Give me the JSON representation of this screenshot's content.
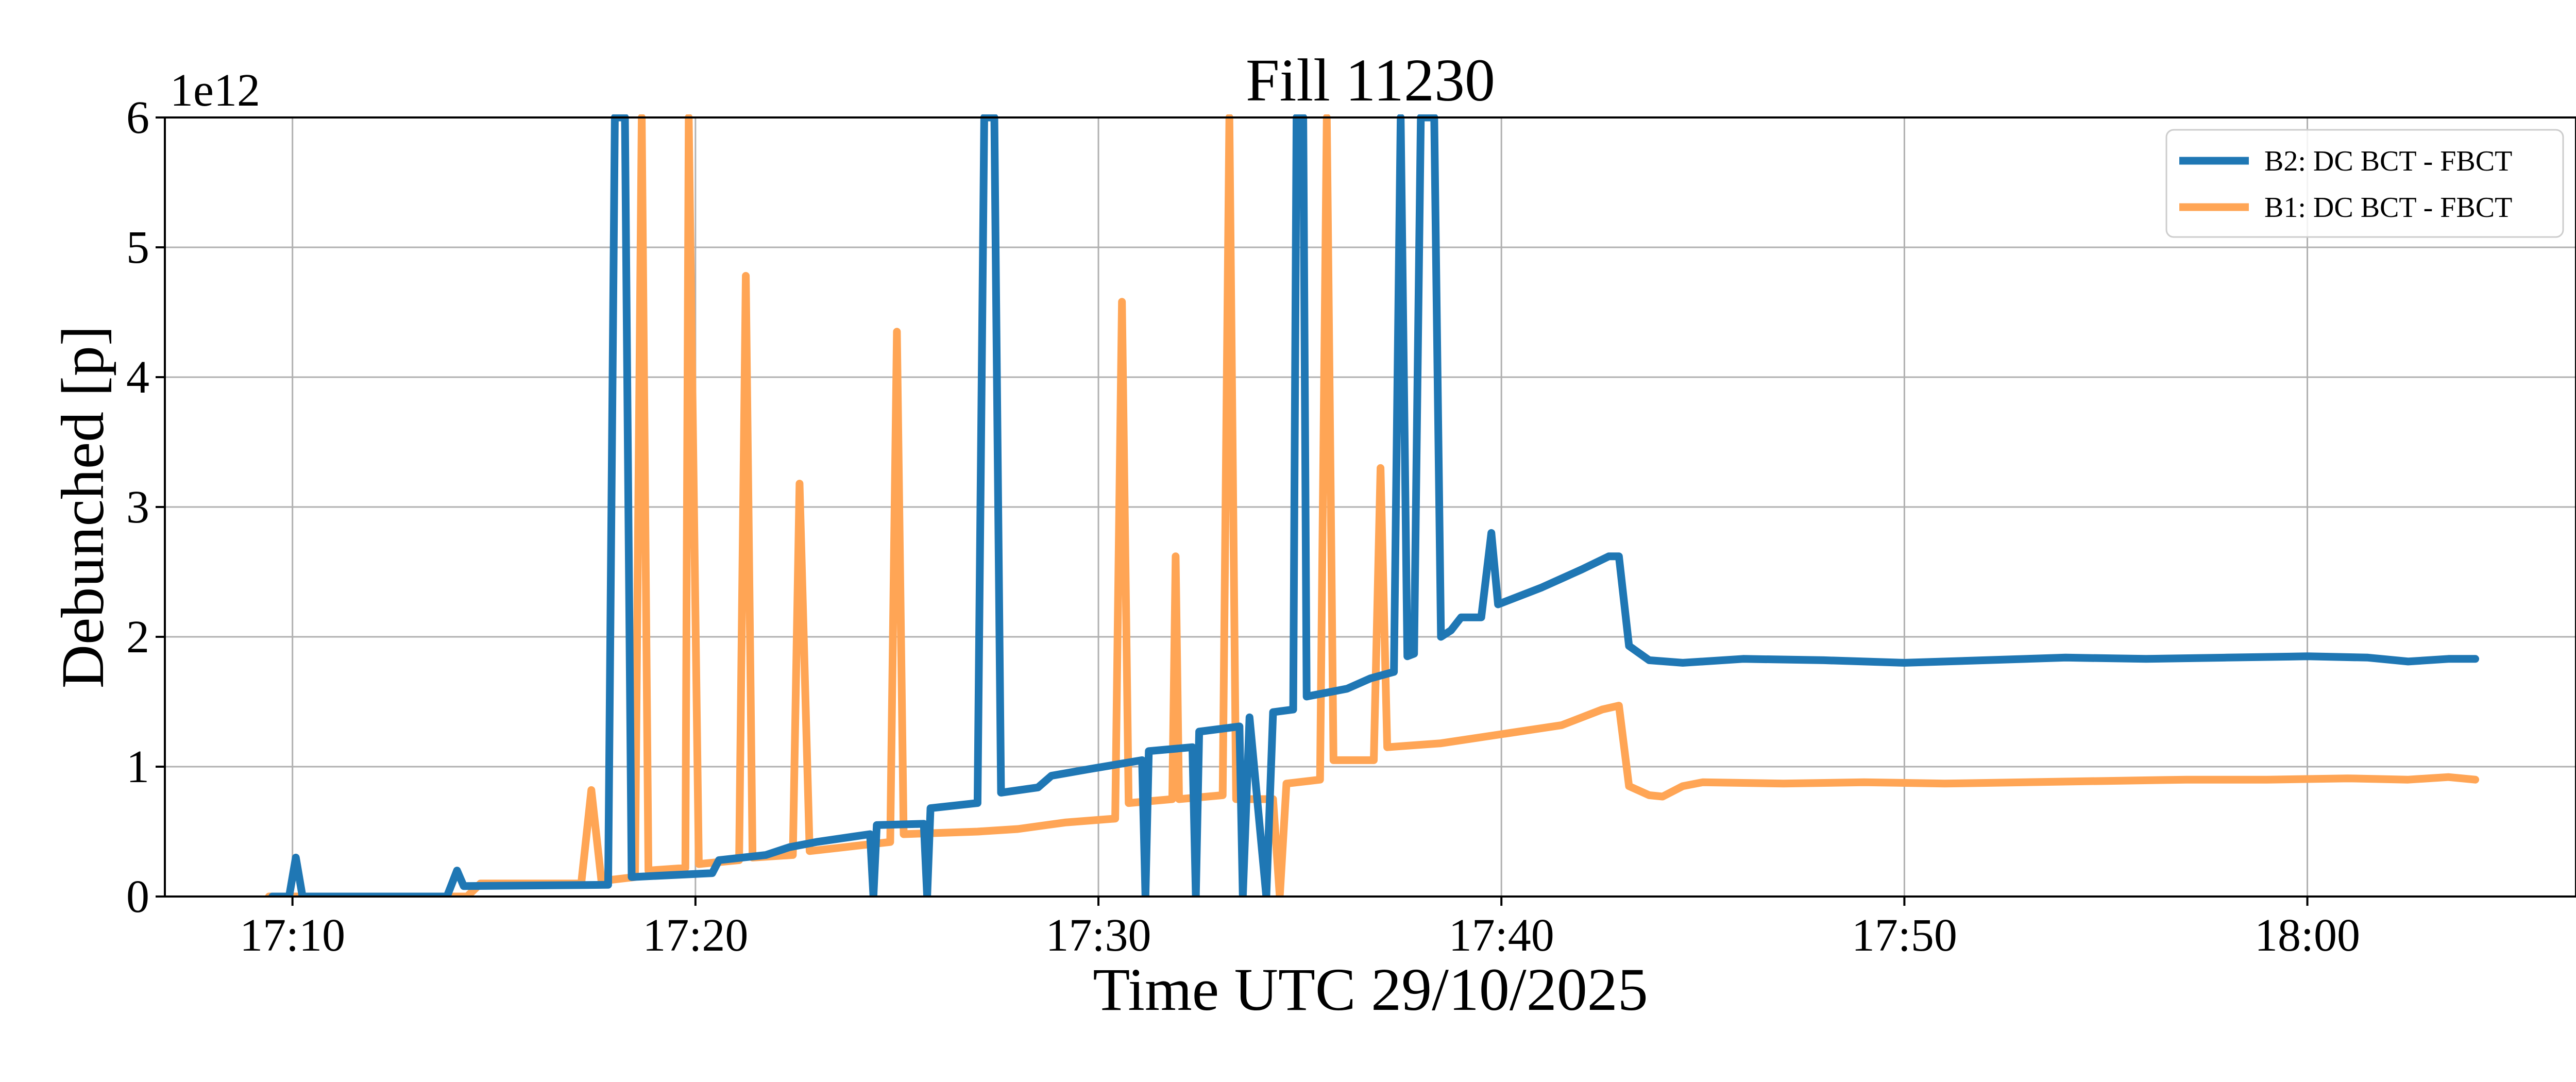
{
  "chart_data": {
    "type": "line",
    "title": "Fill 11230",
    "xlabel": "Time UTC 29/10/2025",
    "ylabel": "Debunched [p]",
    "y_offset_label": "1e12",
    "xlim": [
      "17:06:50",
      "18:06:40"
    ],
    "ylim": [
      0,
      6
    ],
    "x_ticks": [
      "17:10",
      "17:20",
      "17:30",
      "17:40",
      "17:50",
      "18:00"
    ],
    "y_ticks": [
      "0",
      "1",
      "2",
      "3",
      "4",
      "5",
      "6"
    ],
    "grid": true,
    "legend_position": "upper right",
    "series": [
      {
        "name": "B2: DC BCT - FBCT",
        "color": "#1f77b4",
        "points": [
          [
            "17:09:30",
            0.0
          ],
          [
            "17:09:55",
            0.0
          ],
          [
            "17:10:05",
            0.3
          ],
          [
            "17:10:15",
            0.0
          ],
          [
            "17:13:30",
            0.0
          ],
          [
            "17:13:50",
            0.0
          ],
          [
            "17:14:05",
            0.2
          ],
          [
            "17:14:15",
            0.08
          ],
          [
            "17:17:50",
            0.09
          ],
          [
            "17:18:00",
            6.0
          ],
          [
            "17:18:15",
            6.0
          ],
          [
            "17:18:25",
            0.15
          ],
          [
            "17:20:25",
            0.18
          ],
          [
            "17:20:35",
            0.28
          ],
          [
            "17:21:45",
            0.32
          ],
          [
            "17:22:20",
            0.38
          ],
          [
            "17:23:00",
            0.42
          ],
          [
            "17:24:20",
            0.48
          ],
          [
            "17:24:25",
            0.0
          ],
          [
            "17:24:30",
            0.55
          ],
          [
            "17:25:40",
            0.56
          ],
          [
            "17:25:45",
            0.0
          ],
          [
            "17:25:50",
            0.68
          ],
          [
            "17:27:00",
            0.72
          ],
          [
            "17:27:10",
            6.0
          ],
          [
            "17:27:25",
            6.0
          ],
          [
            "17:27:35",
            0.8
          ],
          [
            "17:28:30",
            0.84
          ],
          [
            "17:28:50",
            0.93
          ],
          [
            "17:29:45",
            0.98
          ],
          [
            "17:31:05",
            1.05
          ],
          [
            "17:31:10",
            0.0
          ],
          [
            "17:31:15",
            1.12
          ],
          [
            "17:32:20",
            1.15
          ],
          [
            "17:32:25",
            0.0
          ],
          [
            "17:32:30",
            1.27
          ],
          [
            "17:33:30",
            1.31
          ],
          [
            "17:33:35",
            0.0
          ],
          [
            "17:33:45",
            1.38
          ],
          [
            "17:34:10",
            0.0
          ],
          [
            "17:34:20",
            1.42
          ],
          [
            "17:34:50",
            1.44
          ],
          [
            "17:34:55",
            6.0
          ],
          [
            "17:35:05",
            6.0
          ],
          [
            "17:35:10",
            1.54
          ],
          [
            "17:36:10",
            1.6
          ],
          [
            "17:36:45",
            1.68
          ],
          [
            "17:37:20",
            1.73
          ],
          [
            "17:37:30",
            6.0
          ],
          [
            "17:37:40",
            1.85
          ],
          [
            "17:37:50",
            1.87
          ],
          [
            "17:38:00",
            6.0
          ],
          [
            "17:38:20",
            6.0
          ],
          [
            "17:38:30",
            2.0
          ],
          [
            "17:38:45",
            2.05
          ],
          [
            "17:39:00",
            2.15
          ],
          [
            "17:39:30",
            2.15
          ],
          [
            "17:39:45",
            2.8
          ],
          [
            "17:39:55",
            2.25
          ],
          [
            "17:40:30",
            2.32
          ],
          [
            "17:41:00",
            2.38
          ],
          [
            "17:41:30",
            2.45
          ],
          [
            "17:42:00",
            2.52
          ],
          [
            "17:42:40",
            2.62
          ],
          [
            "17:42:55",
            2.62
          ],
          [
            "17:43:10",
            1.93
          ],
          [
            "17:43:40",
            1.82
          ],
          [
            "17:44:30",
            1.8
          ],
          [
            "17:46:00",
            1.83
          ],
          [
            "17:48:00",
            1.82
          ],
          [
            "17:50:00",
            1.8
          ],
          [
            "17:52:00",
            1.82
          ],
          [
            "17:54:00",
            1.84
          ],
          [
            "17:56:00",
            1.83
          ],
          [
            "17:58:00",
            1.84
          ],
          [
            "18:00:00",
            1.85
          ],
          [
            "18:01:30",
            1.84
          ],
          [
            "18:02:30",
            1.81
          ],
          [
            "18:03:30",
            1.83
          ],
          [
            "18:04:10",
            1.83
          ]
        ]
      },
      {
        "name": "B1: DC BCT - FBCT",
        "color": "#ffa555",
        "points": [
          [
            "17:09:25",
            0.0
          ],
          [
            "17:14:20",
            0.0
          ],
          [
            "17:14:40",
            0.1
          ],
          [
            "17:17:10",
            0.1
          ],
          [
            "17:17:25",
            0.82
          ],
          [
            "17:17:40",
            0.12
          ],
          [
            "17:18:30",
            0.15
          ],
          [
            "17:18:40",
            6.0
          ],
          [
            "17:18:50",
            0.2
          ],
          [
            "17:19:45",
            0.22
          ],
          [
            "17:19:50",
            6.0
          ],
          [
            "17:20:05",
            0.25
          ],
          [
            "17:21:05",
            0.28
          ],
          [
            "17:21:15",
            4.78
          ],
          [
            "17:21:25",
            0.3
          ],
          [
            "17:22:25",
            0.32
          ],
          [
            "17:22:35",
            3.18
          ],
          [
            "17:22:50",
            0.35
          ],
          [
            "17:24:50",
            0.42
          ],
          [
            "17:25:00",
            4.35
          ],
          [
            "17:25:10",
            0.48
          ],
          [
            "17:27:00",
            0.5
          ],
          [
            "17:28:00",
            0.52
          ],
          [
            "17:29:10",
            0.57
          ],
          [
            "17:30:25",
            0.6
          ],
          [
            "17:30:35",
            4.58
          ],
          [
            "17:30:45",
            0.72
          ],
          [
            "17:31:50",
            0.75
          ],
          [
            "17:31:55",
            2.62
          ],
          [
            "17:32:00",
            0.75
          ],
          [
            "17:33:05",
            0.78
          ],
          [
            "17:33:15",
            6.0
          ],
          [
            "17:33:25",
            0.75
          ],
          [
            "17:34:20",
            0.75
          ],
          [
            "17:34:30",
            0.0
          ],
          [
            "17:34:40",
            0.87
          ],
          [
            "17:35:30",
            0.9
          ],
          [
            "17:35:40",
            6.0
          ],
          [
            "17:35:50",
            1.05
          ],
          [
            "17:36:50",
            1.05
          ],
          [
            "17:37:00",
            3.3
          ],
          [
            "17:37:10",
            1.15
          ],
          [
            "17:38:30",
            1.18
          ],
          [
            "17:40:00",
            1.25
          ],
          [
            "17:41:30",
            1.32
          ],
          [
            "17:42:30",
            1.44
          ],
          [
            "17:42:55",
            1.47
          ],
          [
            "17:43:10",
            0.85
          ],
          [
            "17:43:40",
            0.78
          ],
          [
            "17:44:00",
            0.77
          ],
          [
            "17:44:30",
            0.85
          ],
          [
            "17:45:00",
            0.88
          ],
          [
            "17:47:00",
            0.87
          ],
          [
            "17:49:00",
            0.88
          ],
          [
            "17:51:00",
            0.87
          ],
          [
            "17:53:00",
            0.88
          ],
          [
            "17:55:00",
            0.89
          ],
          [
            "17:57:00",
            0.9
          ],
          [
            "17:59:00",
            0.9
          ],
          [
            "18:01:00",
            0.91
          ],
          [
            "18:02:30",
            0.9
          ],
          [
            "18:03:30",
            0.92
          ],
          [
            "18:04:10",
            0.9
          ]
        ]
      }
    ]
  }
}
